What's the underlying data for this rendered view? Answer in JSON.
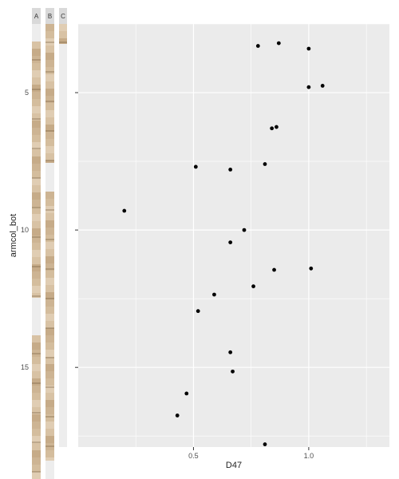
{
  "chart_data": {
    "type": "scatter",
    "xlabel": "D47",
    "ylabel": "armcol_bot",
    "xlim": [
      0.0,
      1.35
    ],
    "ylim": [
      17.9,
      2.5
    ],
    "y_reversed": true,
    "xticks": [
      0.5,
      1.0
    ],
    "xtick_labels": [
      "0.5",
      "1.0"
    ],
    "yticks": [
      5,
      10,
      15
    ],
    "ytick_labels": [
      "5",
      "10",
      "15"
    ],
    "grid": true,
    "colors": {
      "panel": "#ebebeb",
      "grid": "#ffffff",
      "point": "#000000",
      "strip": "#d9d9d9"
    },
    "points": [
      {
        "x": 0.78,
        "y": 3.3
      },
      {
        "x": 0.87,
        "y": 3.2
      },
      {
        "x": 1.0,
        "y": 3.4
      },
      {
        "x": 1.0,
        "y": 4.8
      },
      {
        "x": 1.06,
        "y": 4.75
      },
      {
        "x": 0.84,
        "y": 6.3
      },
      {
        "x": 0.86,
        "y": 6.25
      },
      {
        "x": 0.81,
        "y": 7.6
      },
      {
        "x": 0.51,
        "y": 7.7
      },
      {
        "x": 0.66,
        "y": 7.8
      },
      {
        "x": 0.2,
        "y": 9.3
      },
      {
        "x": 0.72,
        "y": 10.0
      },
      {
        "x": 0.66,
        "y": 10.45
      },
      {
        "x": 0.85,
        "y": 11.45
      },
      {
        "x": 1.01,
        "y": 11.4
      },
      {
        "x": 0.76,
        "y": 12.05
      },
      {
        "x": 0.59,
        "y": 12.35
      },
      {
        "x": 0.52,
        "y": 12.95
      },
      {
        "x": 0.66,
        "y": 14.45
      },
      {
        "x": 0.67,
        "y": 15.15
      },
      {
        "x": 0.47,
        "y": 15.95
      },
      {
        "x": 0.43,
        "y": 16.75
      },
      {
        "x": 0.81,
        "y": 17.8
      }
    ]
  },
  "core_strips": [
    {
      "label": "A"
    },
    {
      "label": "B"
    },
    {
      "label": "C"
    }
  ]
}
